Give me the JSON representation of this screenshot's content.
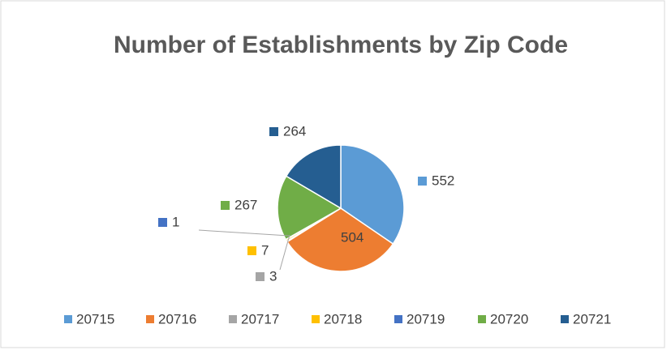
{
  "chart_data": {
    "type": "pie",
    "title": "Number of Establishments by Zip Code",
    "categories": [
      "20715",
      "20716",
      "20717",
      "20718",
      "20719",
      "20720",
      "20721"
    ],
    "values": [
      552,
      504,
      3,
      7,
      1,
      267,
      264
    ],
    "colors": [
      "#5b9bd5",
      "#ed7d31",
      "#a5a5a5",
      "#ffc000",
      "#4472c4",
      "#70ad47",
      "#255e91"
    ],
    "legend": "bottom"
  }
}
